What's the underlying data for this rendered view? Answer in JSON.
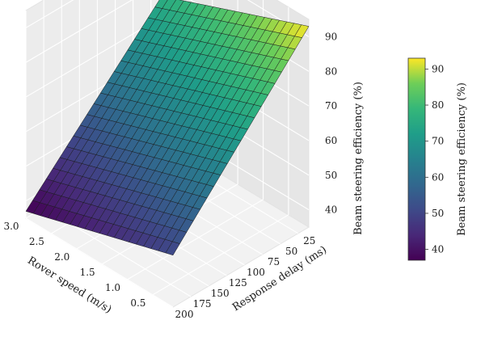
{
  "chart_data": {
    "type": "surface3d",
    "title": "",
    "xlabel": "Rover speed (m/s)",
    "ylabel": "Response delay (ms)",
    "zlabel": "Beam steering efficiency (%)",
    "colorbar_label": "Beam steering efficiency (%)",
    "colormap": "viridis",
    "xlim": [
      0.1,
      3.0
    ],
    "ylim": [
      10,
      200
    ],
    "zlim": [
      35,
      95
    ],
    "x_ticks": [
      "0.5",
      "1.0",
      "1.5",
      "2.0",
      "2.5",
      "3.0"
    ],
    "y_ticks": [
      "25",
      "50",
      "75",
      "100",
      "125",
      "150",
      "175",
      "200"
    ],
    "z_ticks": [
      "40",
      "50",
      "60",
      "70",
      "80",
      "90"
    ],
    "colorbar_ticks": [
      "40",
      "50",
      "60",
      "70",
      "80",
      "90"
    ],
    "colorbar_range": [
      37,
      93
    ],
    "surface": {
      "grid_size": [
        20,
        20
      ],
      "corners": [
        {
          "x": 3.0,
          "y": 200,
          "z": 37
        },
        {
          "x": 0.1,
          "y": 200,
          "z": 50
        },
        {
          "x": 3.0,
          "y": 10,
          "z": 76
        },
        {
          "x": 0.1,
          "y": 10,
          "z": 93
        }
      ]
    },
    "grid": true
  }
}
